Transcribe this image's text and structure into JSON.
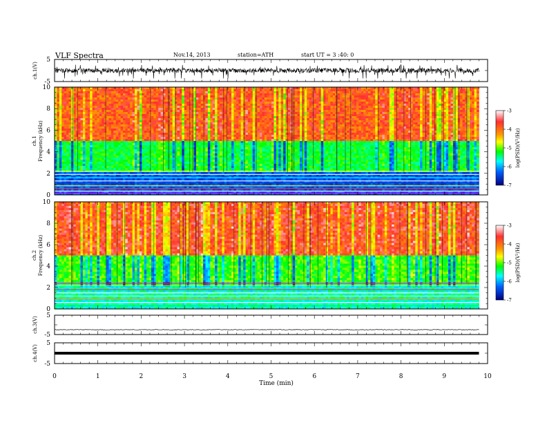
{
  "header": {
    "title": "VLF  Spectra",
    "date": "Nov.14, 2013",
    "station": "station=ATH",
    "start": "start  UT  =   3  :40: 0"
  },
  "chart_data": [
    {
      "type": "line",
      "name": "ch1-waveform",
      "ylabel": "ch.1(V)",
      "ylim": [
        -5,
        5
      ],
      "yticks": [
        "5",
        "-5"
      ],
      "xlim": [
        0,
        9.8
      ],
      "amplitude_typical": 1.5
    },
    {
      "type": "heatmap",
      "name": "ch1-spectrogram",
      "ylabel": "Frequency  (kHz)",
      "ylabel_channel": "ch.1",
      "ylim": [
        0,
        10
      ],
      "yticks": [
        "0",
        "2",
        "4",
        "6",
        "8",
        "10"
      ],
      "colorbar": {
        "label": "log(PSD)(V²/Hz)",
        "range": [
          -7,
          -3
        ],
        "ticks": [
          "-3",
          "-4",
          "-5",
          "-6",
          "-7"
        ],
        "colors": [
          "#ffffff",
          "#ff3030",
          "#ff9900",
          "#ffff00",
          "#00ff00",
          "#00ffff",
          "#0060ff",
          "#000080"
        ]
      },
      "bands_khz": [
        {
          "from": 0,
          "to": 2.2,
          "level": -6.3
        },
        {
          "from": 2.2,
          "to": 5.0,
          "level": -5.0
        },
        {
          "from": 5.0,
          "to": 10,
          "level": -3.6
        }
      ]
    },
    {
      "type": "heatmap",
      "name": "ch2-spectrogram",
      "ylabel": "Frequency  (kHz)",
      "ylabel_channel": "ch.2",
      "ylim": [
        0,
        10
      ],
      "yticks": [
        "0",
        "2",
        "4",
        "6",
        "8",
        "10"
      ],
      "colorbar": {
        "label": "log(PSD)(V²/Hz)",
        "range": [
          -7,
          -3
        ],
        "ticks": [
          "-3",
          "-4",
          "-5",
          "-6",
          "-7"
        ]
      },
      "bands_khz": [
        {
          "from": 0,
          "to": 2.5,
          "level": -5.4
        },
        {
          "from": 2.5,
          "to": 5.0,
          "level": -4.8
        },
        {
          "from": 5.0,
          "to": 10,
          "level": -3.5
        }
      ]
    },
    {
      "type": "line",
      "name": "ch3-waveform",
      "ylabel": "ch.3(V)",
      "ylim": [
        -5,
        5
      ],
      "yticks": [
        "5",
        "-5"
      ],
      "value": -2.5
    },
    {
      "type": "line",
      "name": "ch4-waveform",
      "ylabel": "ch.4(V)",
      "ylim": [
        -5,
        5
      ],
      "yticks": [
        "5",
        "-5"
      ],
      "value": 0
    }
  ],
  "xaxis": {
    "label": "Time  (min)",
    "min": 0,
    "max": 10,
    "data_end": 9.8,
    "ticks": [
      "0",
      "1",
      "2",
      "3",
      "4",
      "5",
      "6",
      "7",
      "8",
      "9",
      "10"
    ]
  }
}
